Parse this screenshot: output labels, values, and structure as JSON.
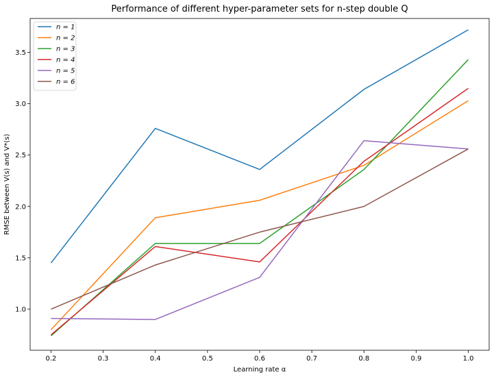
{
  "chart_data": {
    "type": "line",
    "title": "Performance of different hyper-parameter sets for n-step double Q",
    "xlabel": "Learning rate α",
    "ylabel": "RMSE between V(s) and V*(s)",
    "x": [
      0.2,
      0.4,
      0.6,
      0.8,
      1.0
    ],
    "xlim": [
      0.16,
      1.04
    ],
    "ylim": [
      0.6,
      3.83
    ],
    "xticks": [
      "0.2",
      "0.3",
      "0.4",
      "0.5",
      "0.6",
      "0.7",
      "0.8",
      "0.9",
      "1.0"
    ],
    "yticks": [
      "1.0",
      "1.5",
      "2.0",
      "2.5",
      "3.0",
      "3.5"
    ],
    "grid": false,
    "legend_position": "top-left",
    "series": [
      {
        "name": "n = 1",
        "color": "#1f77b4",
        "values": [
          1.45,
          2.76,
          2.36,
          3.14,
          3.72
        ]
      },
      {
        "name": "n = 2",
        "color": "#ff7f0e",
        "values": [
          0.8,
          1.89,
          2.06,
          2.4,
          3.03
        ]
      },
      {
        "name": "n = 3",
        "color": "#2ca02c",
        "values": [
          0.74,
          1.64,
          1.64,
          2.36,
          3.43
        ]
      },
      {
        "name": "n = 4",
        "color": "#d62728",
        "values": [
          0.75,
          1.61,
          1.46,
          2.44,
          3.15
        ]
      },
      {
        "name": "n = 5",
        "color": "#9467bd",
        "values": [
          0.91,
          0.9,
          1.31,
          2.64,
          2.56
        ]
      },
      {
        "name": "n = 6",
        "color": "#8c564b",
        "values": [
          1.0,
          1.43,
          1.75,
          2.0,
          2.56
        ]
      }
    ]
  }
}
